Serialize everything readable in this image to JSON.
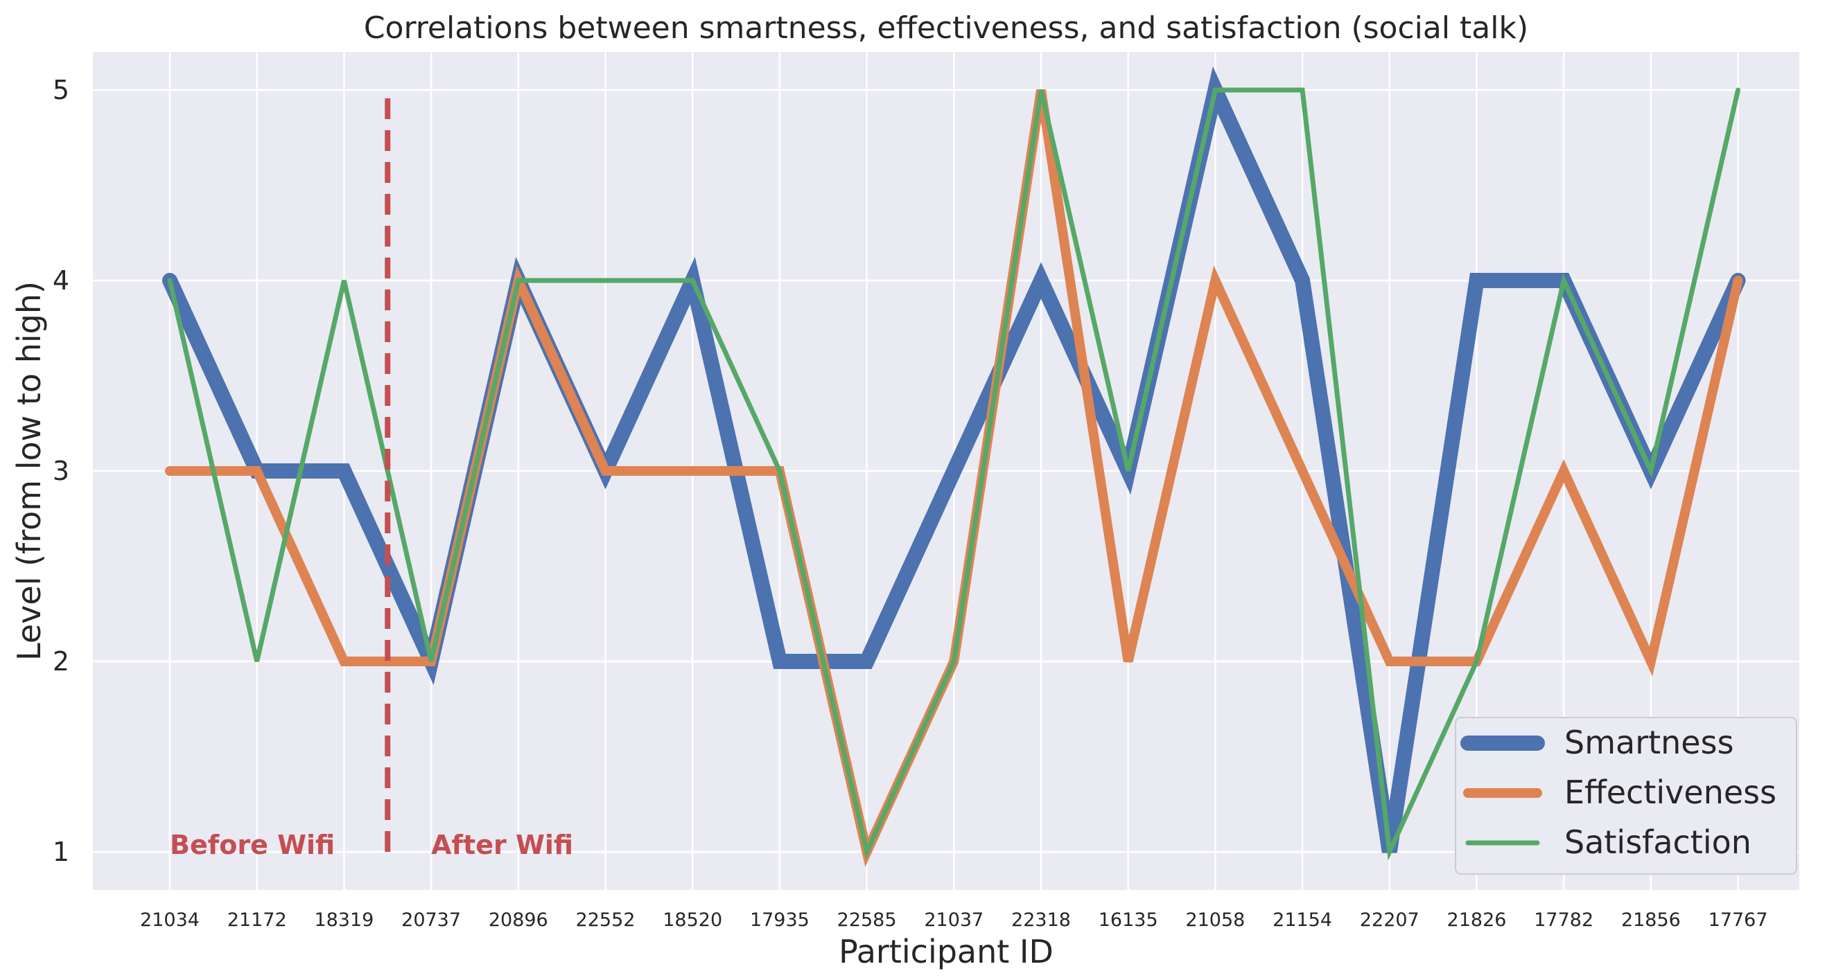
{
  "chart_data": {
    "type": "line",
    "title": "Correlations between smartness, effectiveness, and satisfaction (social talk)",
    "xlabel": "Participant ID",
    "ylabel": "Level (from low to high)",
    "categories": [
      "21034",
      "21172",
      "18319",
      "20737",
      "20896",
      "22552",
      "18520",
      "17935",
      "22585",
      "21037",
      "22318",
      "16135",
      "21058",
      "21154",
      "22207",
      "21826",
      "17782",
      "21856",
      "17767"
    ],
    "series": [
      {
        "name": "Smartness",
        "values": [
          4,
          3,
          3,
          2,
          4,
          3,
          4,
          2,
          2,
          3,
          4,
          3,
          5,
          4,
          1,
          4,
          4,
          3,
          4
        ],
        "color": "#4c72b0"
      },
      {
        "name": "Effectiveness",
        "values": [
          3,
          3,
          2,
          2,
          4,
          3,
          3,
          3,
          1,
          2,
          5,
          2,
          4,
          3,
          2,
          2,
          3,
          2,
          4
        ],
        "color": "#dd8452"
      },
      {
        "name": "Satisfaction",
        "values": [
          4,
          2,
          4,
          2,
          4,
          4,
          4,
          3,
          1,
          2,
          5,
          3,
          5,
          5,
          1,
          2,
          4,
          3,
          5
        ],
        "color": "#55a868"
      }
    ],
    "ylim": [
      0.8,
      5.2
    ],
    "yticks": [
      1,
      2,
      3,
      4,
      5
    ],
    "grid": true,
    "legend": "bottom-right",
    "divider": {
      "x": 2.5,
      "color": "#c44e52",
      "style": "dashed"
    },
    "annotations": [
      {
        "text": "Before Wifi",
        "x": 0,
        "y": 1,
        "color": "#c44e52"
      },
      {
        "text": "After Wifi",
        "x": 3,
        "y": 1,
        "color": "#c44e52"
      }
    ]
  }
}
